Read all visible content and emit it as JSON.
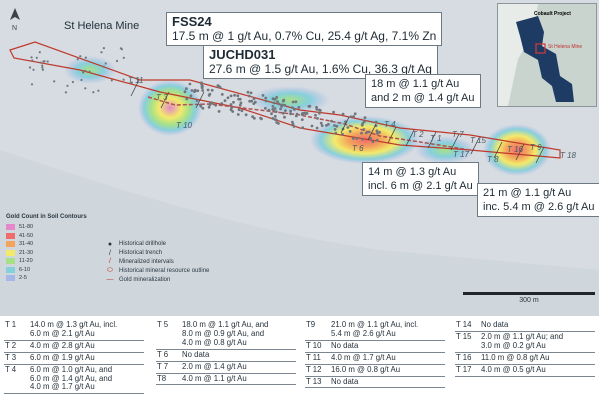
{
  "map": {
    "place_label": "St Helena Mine",
    "scale_label": "300 m",
    "callouts": [
      {
        "title": "FSS24",
        "text": "17.5 m @ 1 g/t Au, 0.7% Cu, 25.4 g/t Ag, 7.1% Zn"
      },
      {
        "title": "JUCHD031",
        "text": "27.6 m @ 1.5 g/t Au, 1.6% Cu, 36.3 g/t Ag"
      },
      {
        "line1": "18 m @ 1.1 g/t Au",
        "line2": "and 2 m @ 1.4 g/t Au"
      },
      {
        "line1": "14 m @ 1.3 g/t Au",
        "line2": "incl. 6 m @ 2.1 g/t Au"
      },
      {
        "line1": "21 m @ 1.1 g/t Au",
        "line2": "inc. 5.4 m @ 2.6 g/t Au"
      }
    ],
    "trench_labels": [
      "T 11",
      "T 3",
      "T 10",
      "T 6",
      "T 4",
      "T 2",
      "T 1",
      "T 7",
      "T 15",
      "T 17",
      "T 8",
      "T 16",
      "T 9",
      "T 18"
    ],
    "legend": {
      "title": "Gold Count in Soil Contours",
      "classes": [
        {
          "label": "51-80",
          "color": "#e389c9"
        },
        {
          "label": "41-50",
          "color": "#f06c6c"
        },
        {
          "label": "31-40",
          "color": "#f4a35c"
        },
        {
          "label": "21-30",
          "color": "#f3ea6a"
        },
        {
          "label": "11-20",
          "color": "#a8e08a"
        },
        {
          "label": "6-10",
          "color": "#86d0dc"
        },
        {
          "label": "2-5",
          "color": "#a7b8e8"
        }
      ],
      "symbols": [
        {
          "label": "Historical drillhole",
          "icon": "dot-icon"
        },
        {
          "label": "Historical trench",
          "icon": "trench-icon"
        },
        {
          "label": "Mineralized intervals",
          "icon": "interval-icon"
        },
        {
          "label": "Historical mineral resource outline",
          "icon": "outline-icon"
        },
        {
          "label": "Gold mineralization",
          "icon": "gold-line-icon"
        }
      ]
    },
    "inset": {
      "title": "Cobault Project",
      "mine": "St Helena Mine"
    }
  },
  "tables": [
    [
      {
        "id": "T 1",
        "val": "14.0 m @ 1.3 g/t Au, incl.\n6.0 m @ 2.1 g/t Au"
      },
      {
        "id": "T 2",
        "val": "4.0 m @ 2.8 g/t Au"
      },
      {
        "id": "T 3",
        "val": "6.0 m @ 1.9 g/t Au"
      },
      {
        "id": "T 4",
        "val": "6.0 m @ 1.0 g/t Au, and\n6.0 m @ 1.4 g/t Au, and\n4.0 m @ 1.7 g/t Au"
      }
    ],
    [
      {
        "id": "T 5",
        "val": "18.0 m @ 1.1 g/t Au, and\n8.0 m @ 0.9 g/t Au, and\n4.0 m @ 0.8 g/t Au"
      },
      {
        "id": "T 6",
        "val": "No data"
      },
      {
        "id": "T 7",
        "val": "2.0 m @ 1.4 g/t Au"
      },
      {
        "id": "T8",
        "val": "4.0 m @ 1.1 g/t Au"
      }
    ],
    [
      {
        "id": "T9",
        "val": "21.0 m @ 1.1 g/t Au, incl.\n5.4 m @ 2.6 g/t Au"
      },
      {
        "id": "T 10",
        "val": "No data"
      },
      {
        "id": "T 11",
        "val": "4.0 m @ 1.7 g/t Au"
      },
      {
        "id": "T 12",
        "val": "16.0 m @ 0.8 g/t Au"
      },
      {
        "id": "T 13",
        "val": "No data"
      }
    ],
    [
      {
        "id": "T 14",
        "val": "No data"
      },
      {
        "id": "T 15",
        "val": "2.0 m @ 1.1 g/t Au; and\n3.0 m @ 0.2 g/t Au"
      },
      {
        "id": "T 16",
        "val": "11.0 m @ 0.8 g/t Au"
      },
      {
        "id": "T 17",
        "val": "4.0 m  @ 0.5 g/t Au"
      }
    ]
  ]
}
